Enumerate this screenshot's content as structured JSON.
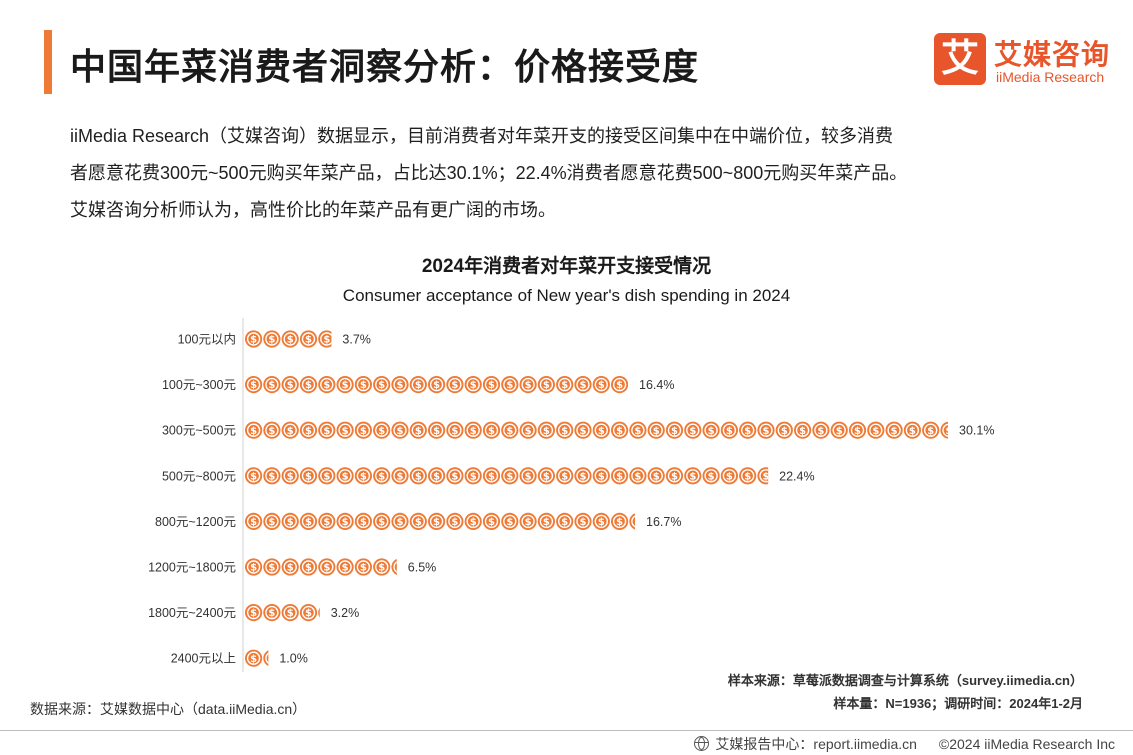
{
  "header": {
    "title": "中国年菜消费者洞察分析：价格接受度",
    "logo_mark": "艾",
    "logo_cn": "艾媒咨询",
    "logo_en": "iiMedia Research"
  },
  "intro": {
    "line1": "iiMedia Research（艾媒咨询）数据显示，目前消费者对年菜开支的接受区间集中在中端价位，较多消费",
    "line2": "者愿意花费300元~500元购买年菜产品，占比达30.1%；22.4%消费者愿意花费500~800元购买年菜产品。",
    "line3": "艾媒咨询分析师认为，高性价比的年菜产品有更广阔的市场。"
  },
  "chart_data": {
    "type": "bar",
    "orientation": "horizontal",
    "title": "2024年消费者对年菜开支接受情况",
    "subtitle": "Consumer acceptance of New year's dish spending in 2024",
    "categories": [
      "100元以内",
      "100元~300元",
      "300元~500元",
      "500元~800元",
      "800元~1200元",
      "1200元~1800元",
      "1800元~2400元",
      "2400元以上"
    ],
    "values": [
      3.7,
      16.4,
      30.1,
      22.4,
      16.7,
      6.5,
      3.2,
      1.0
    ],
    "value_labels": [
      "3.7%",
      "16.4%",
      "30.1%",
      "22.4%",
      "16.7%",
      "6.5%",
      "3.2%",
      "1.0%"
    ],
    "unit": "%",
    "bar_style": "coin-icons",
    "coin_symbol": "$",
    "color": "#ee7a36"
  },
  "notes": {
    "sample_source": "样本来源：草莓派数据调查与计算系统（survey.iimedia.cn）",
    "sample_size": "样本量：N=1936；调研时间：2024年1-2月",
    "data_source": "数据来源：艾媒数据中心（data.iiMedia.cn）"
  },
  "footer": {
    "report_center": "艾媒报告中心：report.iimedia.cn",
    "copyright": "©2024  iiMedia Research Inc"
  }
}
